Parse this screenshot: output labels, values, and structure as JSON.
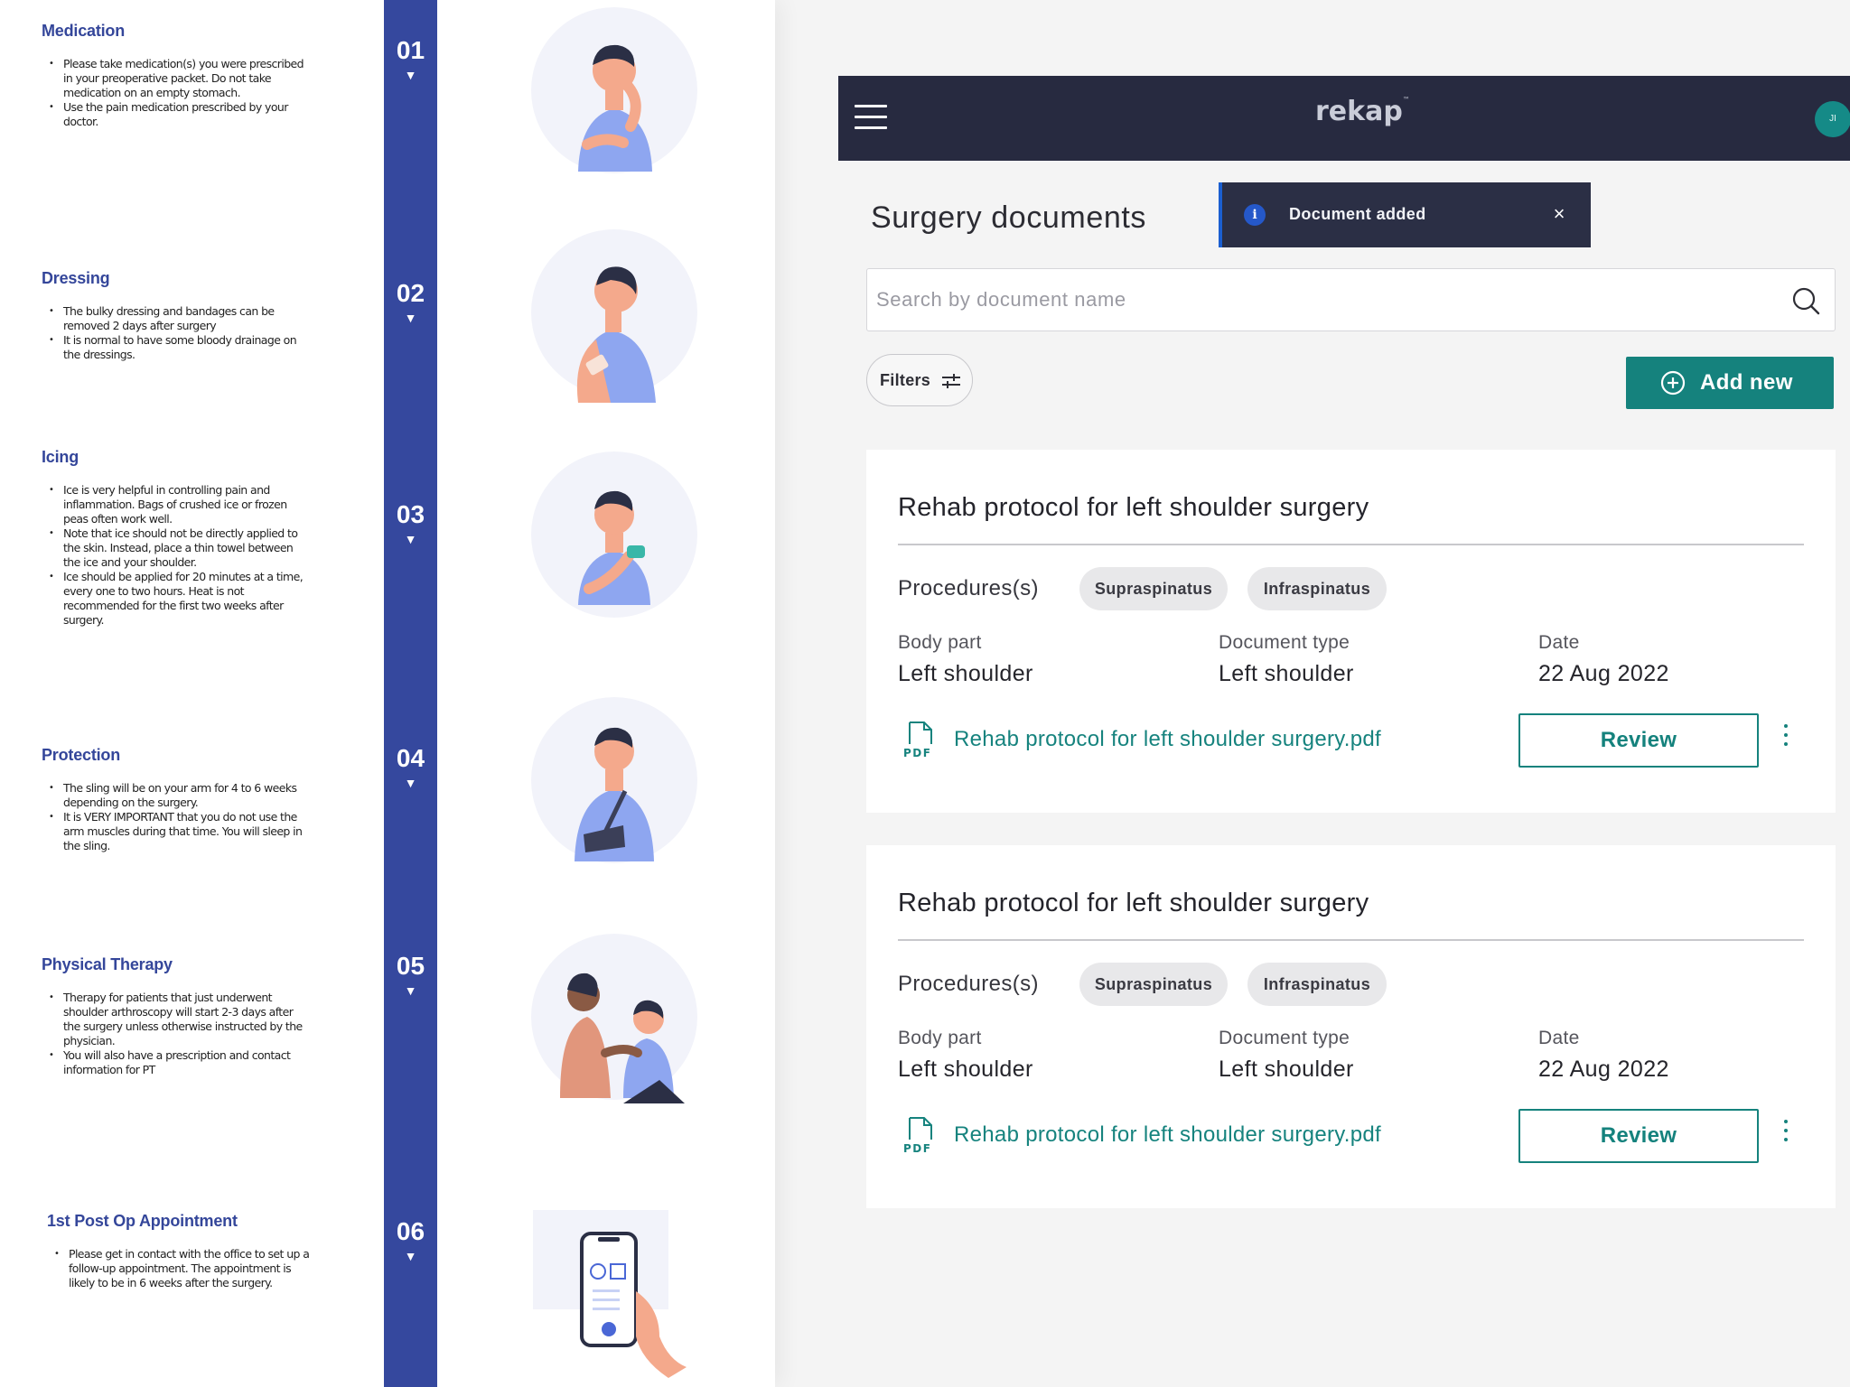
{
  "doc": {
    "steps": [
      {
        "num": "01",
        "title": "Medication",
        "bullets": [
          "Please take medication(s) you were prescribed in your preoperative packet. Do not take medication on an empty stomach.",
          "Use the pain medication prescribed by your doctor."
        ]
      },
      {
        "num": "02",
        "title": "Dressing",
        "bullets": [
          "The bulky dressing and bandages can be removed 2 days after surgery",
          "It is normal to have some bloody drainage on the dressings."
        ]
      },
      {
        "num": "03",
        "title": "Icing",
        "bullets": [
          "Ice is very helpful in controlling pain and inflammation. Bags of crushed ice or frozen peas often work well.",
          "Note that ice should not be directly applied to the skin. Instead, place a thin towel between the ice and your shoulder.",
          "Ice should be applied for 20 minutes at a time, every one to two hours. Heat is not recommended for the first two weeks after surgery."
        ]
      },
      {
        "num": "04",
        "title": "Protection",
        "bullets": [
          "The sling will be on your arm for 4 to 6 weeks depending on the surgery.",
          "It is VERY IMPORTANT that you do not use the arm muscles during that time. You will sleep in the sling."
        ]
      },
      {
        "num": "05",
        "title": "Physical Therapy",
        "bullets": [
          "Therapy for patients that just underwent shoulder arthroscopy will start 2-3 days after the surgery unless otherwise instructed by the physician.",
          "You will also have a prescription and contact information for PT"
        ]
      },
      {
        "num": "06",
        "title": "1st Post Op Appointment",
        "bullets": [
          "Please get in contact with the office to set up a follow-up appointment. The appointment is likely to be in 6 weeks after the surgery."
        ]
      }
    ]
  },
  "app": {
    "logo": "rekap",
    "logo_mark": "™",
    "avatar_initials": "JI",
    "page_title": "Surgery documents",
    "toast": {
      "message": "Document added",
      "close": "×",
      "info": "i"
    },
    "search": {
      "placeholder": "Search by document name",
      "value": ""
    },
    "filters_label": "Filters",
    "add_new_label": "Add new",
    "cards": [
      {
        "title": "Rehab protocol for left shoulder surgery",
        "procedures_label": "Procedures(s)",
        "procedures": [
          "Supraspinatus",
          "Infraspinatus"
        ],
        "body_part_label": "Body part",
        "body_part": "Left shoulder",
        "document_type_label": "Document type",
        "document_type": "Left shoulder",
        "date_label": "Date",
        "date": "22 Aug 2022",
        "file_icon_text": "PDF",
        "file_name": "Rehab protocol for left shoulder surgery.pdf",
        "review_label": "Review"
      },
      {
        "title": "Rehab protocol for left shoulder surgery",
        "procedures_label": "Procedures(s)",
        "procedures": [
          "Supraspinatus",
          "Infraspinatus"
        ],
        "body_part_label": "Body part",
        "body_part": "Left shoulder",
        "document_type_label": "Document type",
        "document_type": "Left shoulder",
        "date_label": "Date",
        "date": "22 Aug 2022",
        "file_icon_text": "PDF",
        "file_name": "Rehab protocol for left shoulder surgery.pdf",
        "review_label": "Review"
      }
    ],
    "colors": {
      "topbar": "#272a40",
      "accent": "#15827d",
      "doc_blue": "#35489e",
      "toast_info": "#2558c9"
    }
  }
}
